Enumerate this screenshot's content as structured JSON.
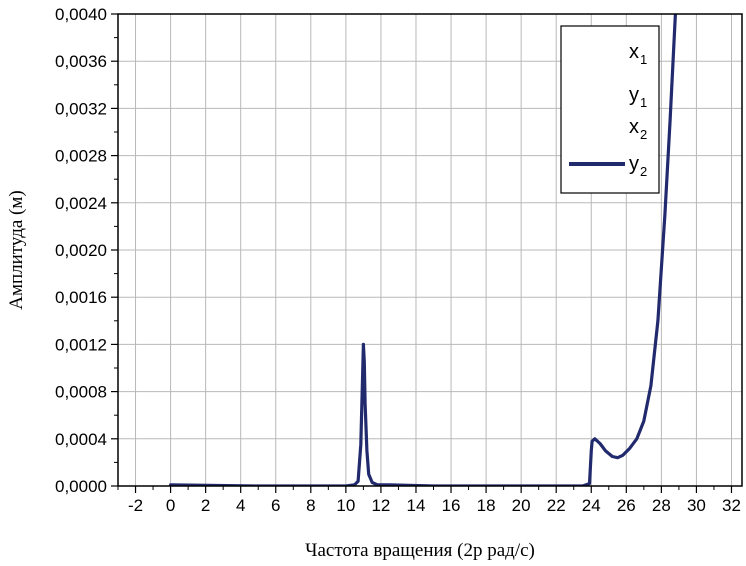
{
  "chart_data": {
    "type": "line",
    "title": "",
    "xlabel": "Частота вращения (2p рад/с)",
    "ylabel": "Амплитуда (м)",
    "xlim": [
      -3,
      32.6
    ],
    "ylim": [
      0,
      0.004
    ],
    "grid": true,
    "legend_position": "top-right",
    "x_ticks": [
      "-2",
      "0",
      "2",
      "4",
      "6",
      "8",
      "10",
      "12",
      "14",
      "16",
      "18",
      "20",
      "22",
      "24",
      "26",
      "28",
      "30",
      "32"
    ],
    "y_ticks": [
      "0,0000",
      "0,0004",
      "0,0008",
      "0,0012",
      "0,0016",
      "0,0020",
      "0,0024",
      "0,0028",
      "0,0032",
      "0,0036",
      "0,0040"
    ],
    "legend": [
      {
        "base": "x",
        "sub": "1",
        "line": false
      },
      {
        "base": "y",
        "sub": "1",
        "line": false
      },
      {
        "base": "x",
        "sub": "2",
        "line": false
      },
      {
        "base": "y",
        "sub": "2",
        "line": true
      }
    ],
    "series": [
      {
        "color": "#222a6e",
        "x": [
          0,
          5,
          10,
          10.5,
          10.7,
          10.85,
          10.95,
          11.0,
          11.05,
          11.1,
          11.2,
          11.3,
          11.5,
          11.8,
          12.5,
          15,
          20,
          23.5,
          23.9,
          24.0,
          24.05,
          24.2,
          24.5,
          24.8,
          25.2,
          25.5,
          25.8,
          26.2,
          26.6,
          27.0,
          27.4,
          27.8,
          28.2,
          28.5,
          28.8
        ],
        "y": [
          1e-05,
          0.0,
          0.0,
          1e-05,
          4e-05,
          0.00035,
          0.0009,
          0.0012,
          0.00105,
          0.0007,
          0.0003,
          0.0001,
          3e-05,
          1e-05,
          1e-05,
          0.0,
          0.0,
          0.0,
          2e-05,
          0.0003,
          0.00038,
          0.0004,
          0.00036,
          0.0003,
          0.00025,
          0.00024,
          0.00026,
          0.00032,
          0.0004,
          0.00055,
          0.00085,
          0.0014,
          0.0023,
          0.0031,
          0.004
        ]
      }
    ]
  }
}
